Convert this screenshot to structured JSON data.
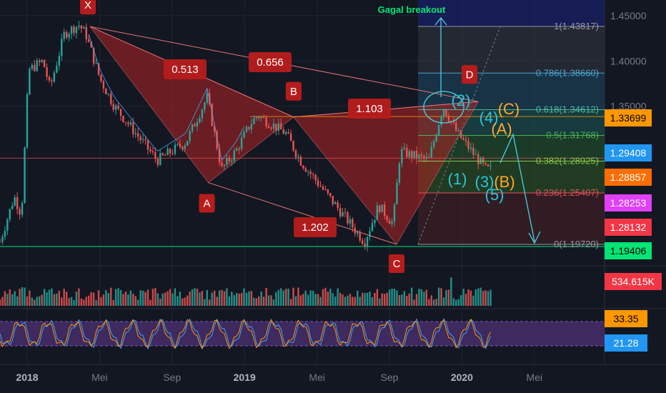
{
  "chart_data": {
    "type": "line",
    "subtype": "candlestick-with-harmonic-pattern",
    "x_tick_labels": [
      "2018",
      "Mei",
      "Sep",
      "2019",
      "Mei",
      "Sep",
      "2020",
      "Mei"
    ],
    "y_tick_labels": [
      "1.45000",
      "1.40000",
      "1.35000"
    ],
    "ylim": [
      1.17,
      1.46
    ],
    "pattern_points": [
      {
        "label": "X",
        "date": "2018-04",
        "price": 1.438
      },
      {
        "label": "A",
        "date": "2018-11",
        "price": 1.2655
      },
      {
        "label": "B",
        "date": "2019-03",
        "price": 1.338
      },
      {
        "label": "C",
        "date": "2019-09",
        "price": 1.1972
      },
      {
        "label": "D",
        "date": "2019-12",
        "price": 1.355
      }
    ],
    "ratio_labels": [
      "0.513",
      "0.656",
      "1.103",
      "1.202"
    ],
    "fibonacci_levels": [
      {
        "label": "1(1.43817)",
        "value": 1.43817,
        "color": "#9598a1"
      },
      {
        "label": "0.786(1.38660)",
        "value": 1.3866,
        "color": "#4fa3d1"
      },
      {
        "label": "0.618(1.34612)",
        "value": 1.34612,
        "color": "#4fb8a0"
      },
      {
        "label": "0.5(1.31768)",
        "value": 1.31768,
        "color": "#4caf50"
      },
      {
        "label": "0.382(1.28925)",
        "value": 1.28925,
        "color": "#8bc34a"
      },
      {
        "label": "0.236(1.25407)",
        "value": 1.25407,
        "color": "#e0505a"
      },
      {
        "label": "0(1.19720)",
        "value": 1.1972,
        "color": "#9598a1"
      }
    ],
    "annotations": [
      "Gagal breakout"
    ],
    "wave_labels_cyan": [
      "(1)",
      "(2)",
      "(3)",
      "(4)",
      "(5)"
    ],
    "wave_labels_orange": [
      "(A)",
      "(B)",
      "(C)"
    ],
    "price_tags": [
      {
        "label": "1.33699",
        "bg": "#ff9800",
        "fg": "#000000"
      },
      {
        "label": "1.29408",
        "bg": "#2196f3",
        "fg": "#ffffff"
      },
      {
        "label": "1.28857",
        "bg": "#ff6d00",
        "fg": "#ffffff"
      },
      {
        "label": "1.28253",
        "bg": "#e040fb",
        "fg": "#ffffff"
      },
      {
        "label": "1.28132",
        "bg": "#f23645",
        "fg": "#ffffff"
      },
      {
        "label": "1.19406",
        "bg": "#00e676",
        "fg": "#000000"
      }
    ],
    "volume_tag": {
      "label": "534.615K",
      "bg": "#f23645",
      "fg": "#ffffff"
    },
    "oscillator_tags": [
      {
        "label": "33.35",
        "bg": "#ff9800",
        "fg": "#000000"
      },
      {
        "label": "21.28",
        "bg": "#2196f3",
        "fg": "#ffffff"
      }
    ],
    "colors": {
      "background": "#131722",
      "up": "#26a69a",
      "down": "#ef5350",
      "pattern_fill": "#b22222",
      "label_box": "#b71c1c",
      "cyan": "#26c6da",
      "orange": "#ffa726",
      "breakout": "#00e676"
    },
    "grid": true
  }
}
